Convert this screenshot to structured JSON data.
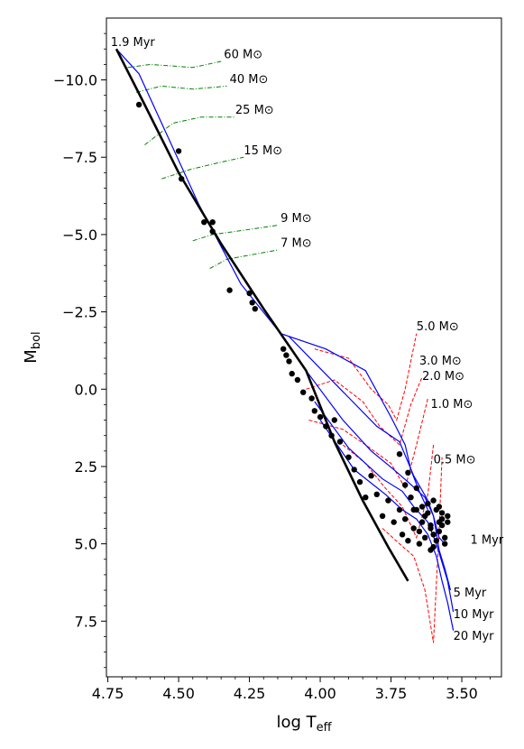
{
  "chart_data": {
    "type": "scatter",
    "xlabel": "log T",
    "xlabel_sub": "eff",
    "ylabel": "M",
    "ylabel_sub": "bol",
    "xlim": [
      4.755,
      3.36
    ],
    "ylim": [
      9.3,
      -12.0
    ],
    "x_ticks": [
      4.75,
      4.5,
      4.25,
      4.0,
      3.75,
      3.5
    ],
    "x_tick_labels": [
      "4.75",
      "4.50",
      "4.25",
      "4.00",
      "3.75",
      "3.50"
    ],
    "y_ticks": [
      -10.0,
      -7.5,
      -5.0,
      -2.5,
      0.0,
      2.5,
      5.0,
      7.5
    ],
    "y_tick_labels": [
      "−10.0",
      "−7.5",
      "−5.0",
      "−2.5",
      "0.0",
      "2.5",
      "5.0",
      "7.5"
    ],
    "grid": false,
    "colors": {
      "zams": "#000000",
      "isochrone": "#0000ff",
      "high_mass_track": "#008000",
      "low_mass_track": "#ff0000",
      "stars": "#000000"
    },
    "zams": {
      "x": [
        4.72,
        4.62,
        4.5,
        4.35,
        4.2,
        4.05,
        3.95,
        3.85,
        3.76,
        3.69
      ],
      "y": [
        -11.0,
        -9.2,
        -7.0,
        -4.7,
        -2.6,
        -0.6,
        1.7,
        3.6,
        5.1,
        6.2
      ]
    },
    "isochrones": [
      {
        "label": "1.9 Myr",
        "x": [
          4.72,
          4.64,
          4.56,
          4.43,
          4.28,
          4.14,
          3.98,
          3.84,
          3.75,
          3.7,
          3.68,
          3.65,
          3.62
        ],
        "y": [
          -11.0,
          -10.2,
          -8.6,
          -6.0,
          -3.4,
          -1.8,
          -1.3,
          -0.6,
          0.9,
          1.8,
          2.6,
          3.3,
          3.9
        ]
      },
      {
        "label": "1 Myr",
        "x": [
          4.11,
          3.95,
          3.8,
          3.72,
          3.67,
          3.62,
          3.6,
          3.58,
          3.56
        ],
        "y": [
          -1.7,
          -0.2,
          1.2,
          1.7,
          2.8,
          3.6,
          4.1,
          4.8,
          5.0
        ]
      },
      {
        "label": "5 Myr",
        "x": [
          4.05,
          3.92,
          3.82,
          3.74,
          3.69,
          3.63,
          3.6,
          3.58,
          3.56,
          3.54
        ],
        "y": [
          -0.6,
          1.0,
          2.0,
          2.6,
          3.0,
          3.5,
          4.1,
          5.2,
          5.8,
          6.5
        ]
      },
      {
        "label": "10 Myr",
        "x": [
          4.02,
          3.9,
          3.78,
          3.71,
          3.67,
          3.62,
          3.59,
          3.57,
          3.55,
          3.53
        ],
        "y": [
          0.4,
          1.9,
          2.9,
          3.3,
          3.8,
          4.3,
          5.0,
          5.6,
          6.2,
          7.2
        ]
      },
      {
        "label": "20 Myr",
        "x": [
          4.0,
          3.88,
          3.77,
          3.71,
          3.66,
          3.62,
          3.59,
          3.57,
          3.55,
          3.53
        ],
        "y": [
          1.0,
          2.6,
          3.4,
          3.9,
          4.2,
          4.7,
          5.4,
          6.2,
          6.9,
          7.8
        ]
      }
    ],
    "high_mass_tracks": [
      {
        "label": "60",
        "x": [
          4.68,
          4.6,
          4.45,
          4.35
        ],
        "y": [
          -10.4,
          -10.5,
          -10.4,
          -10.6
        ]
      },
      {
        "label": "40",
        "x": [
          4.65,
          4.56,
          4.45,
          4.33
        ],
        "y": [
          -9.6,
          -9.8,
          -9.7,
          -9.8
        ]
      },
      {
        "label": "25",
        "x": [
          4.62,
          4.52,
          4.42,
          4.3
        ],
        "y": [
          -7.9,
          -8.6,
          -8.8,
          -8.8
        ]
      },
      {
        "label": "15",
        "x": [
          4.56,
          4.46,
          4.37,
          4.27
        ],
        "y": [
          -6.8,
          -7.1,
          -7.3,
          -7.5
        ]
      },
      {
        "label": "9",
        "x": [
          4.45,
          4.38,
          4.3,
          4.15
        ],
        "y": [
          -4.8,
          -5.0,
          -5.1,
          -5.3
        ]
      },
      {
        "label": "7",
        "x": [
          4.39,
          4.33,
          4.27,
          4.15
        ],
        "y": [
          -3.9,
          -4.2,
          -4.3,
          -4.5
        ]
      }
    ],
    "low_mass_tracks": [
      {
        "label": "5.0",
        "x": [
          4.02,
          3.9,
          3.82,
          3.76,
          3.73,
          3.7,
          3.66
        ],
        "y": [
          -1.3,
          -1.0,
          0.0,
          0.5,
          1.0,
          0.0,
          -1.8
        ]
      },
      {
        "label": "3.0",
        "x": [
          4.05,
          3.95,
          3.85,
          3.79,
          3.72,
          3.68,
          3.64
        ],
        "y": [
          0.0,
          -0.3,
          0.4,
          1.2,
          1.8,
          0.5,
          -0.4
        ]
      },
      {
        "label": "2.0",
        "x": [
          4.04,
          3.92,
          3.84,
          3.75,
          3.7,
          3.66,
          3.62
        ],
        "y": [
          1.0,
          1.3,
          1.8,
          2.4,
          3.2,
          1.8,
          0.3
        ]
      },
      {
        "label": "1.0",
        "x": [
          3.92,
          3.84,
          3.77,
          3.71,
          3.66,
          3.62,
          3.6
        ],
        "y": [
          1.8,
          2.4,
          3.2,
          3.8,
          4.8,
          3.4,
          1.8
        ]
      },
      {
        "label": "0.5",
        "x": [
          3.78,
          3.72,
          3.67,
          3.63,
          3.6,
          3.58,
          3.57
        ],
        "y": [
          4.5,
          5.0,
          5.4,
          6.5,
          8.2,
          4.5,
          2.2
        ]
      }
    ],
    "stars": {
      "x": [
        4.64,
        4.5,
        4.49,
        4.41,
        4.38,
        4.38,
        4.32,
        4.25,
        4.24,
        4.23,
        4.13,
        4.12,
        4.11,
        4.1,
        4.08,
        4.06,
        4.03,
        4.02,
        4.0,
        3.98,
        3.96,
        3.95,
        3.93,
        3.9,
        3.88,
        3.86,
        3.84,
        3.82,
        3.8,
        3.78,
        3.76,
        3.74,
        3.72,
        3.71,
        3.7,
        3.69,
        3.68,
        3.67,
        3.66,
        3.65,
        3.64,
        3.63,
        3.62,
        3.61,
        3.6,
        3.59,
        3.58,
        3.57,
        3.56,
        3.55,
        3.72,
        3.69,
        3.66,
        3.64,
        3.62,
        3.61,
        3.6,
        3.59,
        3.58,
        3.57,
        3.7,
        3.67,
        3.65,
        3.63,
        3.61,
        3.6,
        3.58,
        3.57,
        3.56,
        3.55
      ],
      "y": [
        -9.2,
        -7.7,
        -6.8,
        -5.4,
        -5.4,
        -5.1,
        -3.2,
        -3.1,
        -2.8,
        -2.6,
        -1.3,
        -1.1,
        -0.9,
        -0.5,
        -0.3,
        0.1,
        0.3,
        0.7,
        0.9,
        1.2,
        1.5,
        1.0,
        1.7,
        2.2,
        2.6,
        3.0,
        3.5,
        2.8,
        3.4,
        4.1,
        3.6,
        4.3,
        3.9,
        4.7,
        4.2,
        4.9,
        3.5,
        4.5,
        3.9,
        5.0,
        4.3,
        4.8,
        3.7,
        4.4,
        5.1,
        3.9,
        4.6,
        4.2,
        4.8,
        4.1,
        2.1,
        2.7,
        3.2,
        3.8,
        4.0,
        4.5,
        3.6,
        4.9,
        4.3,
        4.0,
        3.1,
        3.9,
        4.6,
        4.1,
        5.2,
        4.7,
        3.8,
        4.4,
        5.0,
        4.3
      ]
    },
    "annotations": [
      {
        "text": "1.9 Myr",
        "x": 4.74,
        "y": -11.1
      },
      {
        "text": "1 Myr",
        "x": 3.47,
        "y": 5.0
      },
      {
        "text": "5 Myr",
        "x": 3.53,
        "y": 6.7
      },
      {
        "text": "10 Myr",
        "x": 3.53,
        "y": 7.4
      },
      {
        "text": "20 Myr",
        "x": 3.53,
        "y": 8.1
      },
      {
        "text": "60 M⊙",
        "x": 4.34,
        "y": -10.7
      },
      {
        "text": "40 M⊙",
        "x": 4.32,
        "y": -9.9
      },
      {
        "text": "25 M⊙",
        "x": 4.3,
        "y": -8.9
      },
      {
        "text": "15 M⊙",
        "x": 4.27,
        "y": -7.6
      },
      {
        "text": "9 M⊙",
        "x": 4.14,
        "y": -5.4
      },
      {
        "text": "7 M⊙",
        "x": 4.14,
        "y": -4.6
      },
      {
        "text": "5.0 M⊙",
        "x": 3.66,
        "y": -1.9
      },
      {
        "text": "3.0 M⊙",
        "x": 3.65,
        "y": -0.8
      },
      {
        "text": "2.0 M⊙",
        "x": 3.64,
        "y": -0.3
      },
      {
        "text": "1.0 M⊙",
        "x": 3.61,
        "y": 0.6
      },
      {
        "text": "0.5 M⊙",
        "x": 3.6,
        "y": 2.4
      }
    ]
  }
}
